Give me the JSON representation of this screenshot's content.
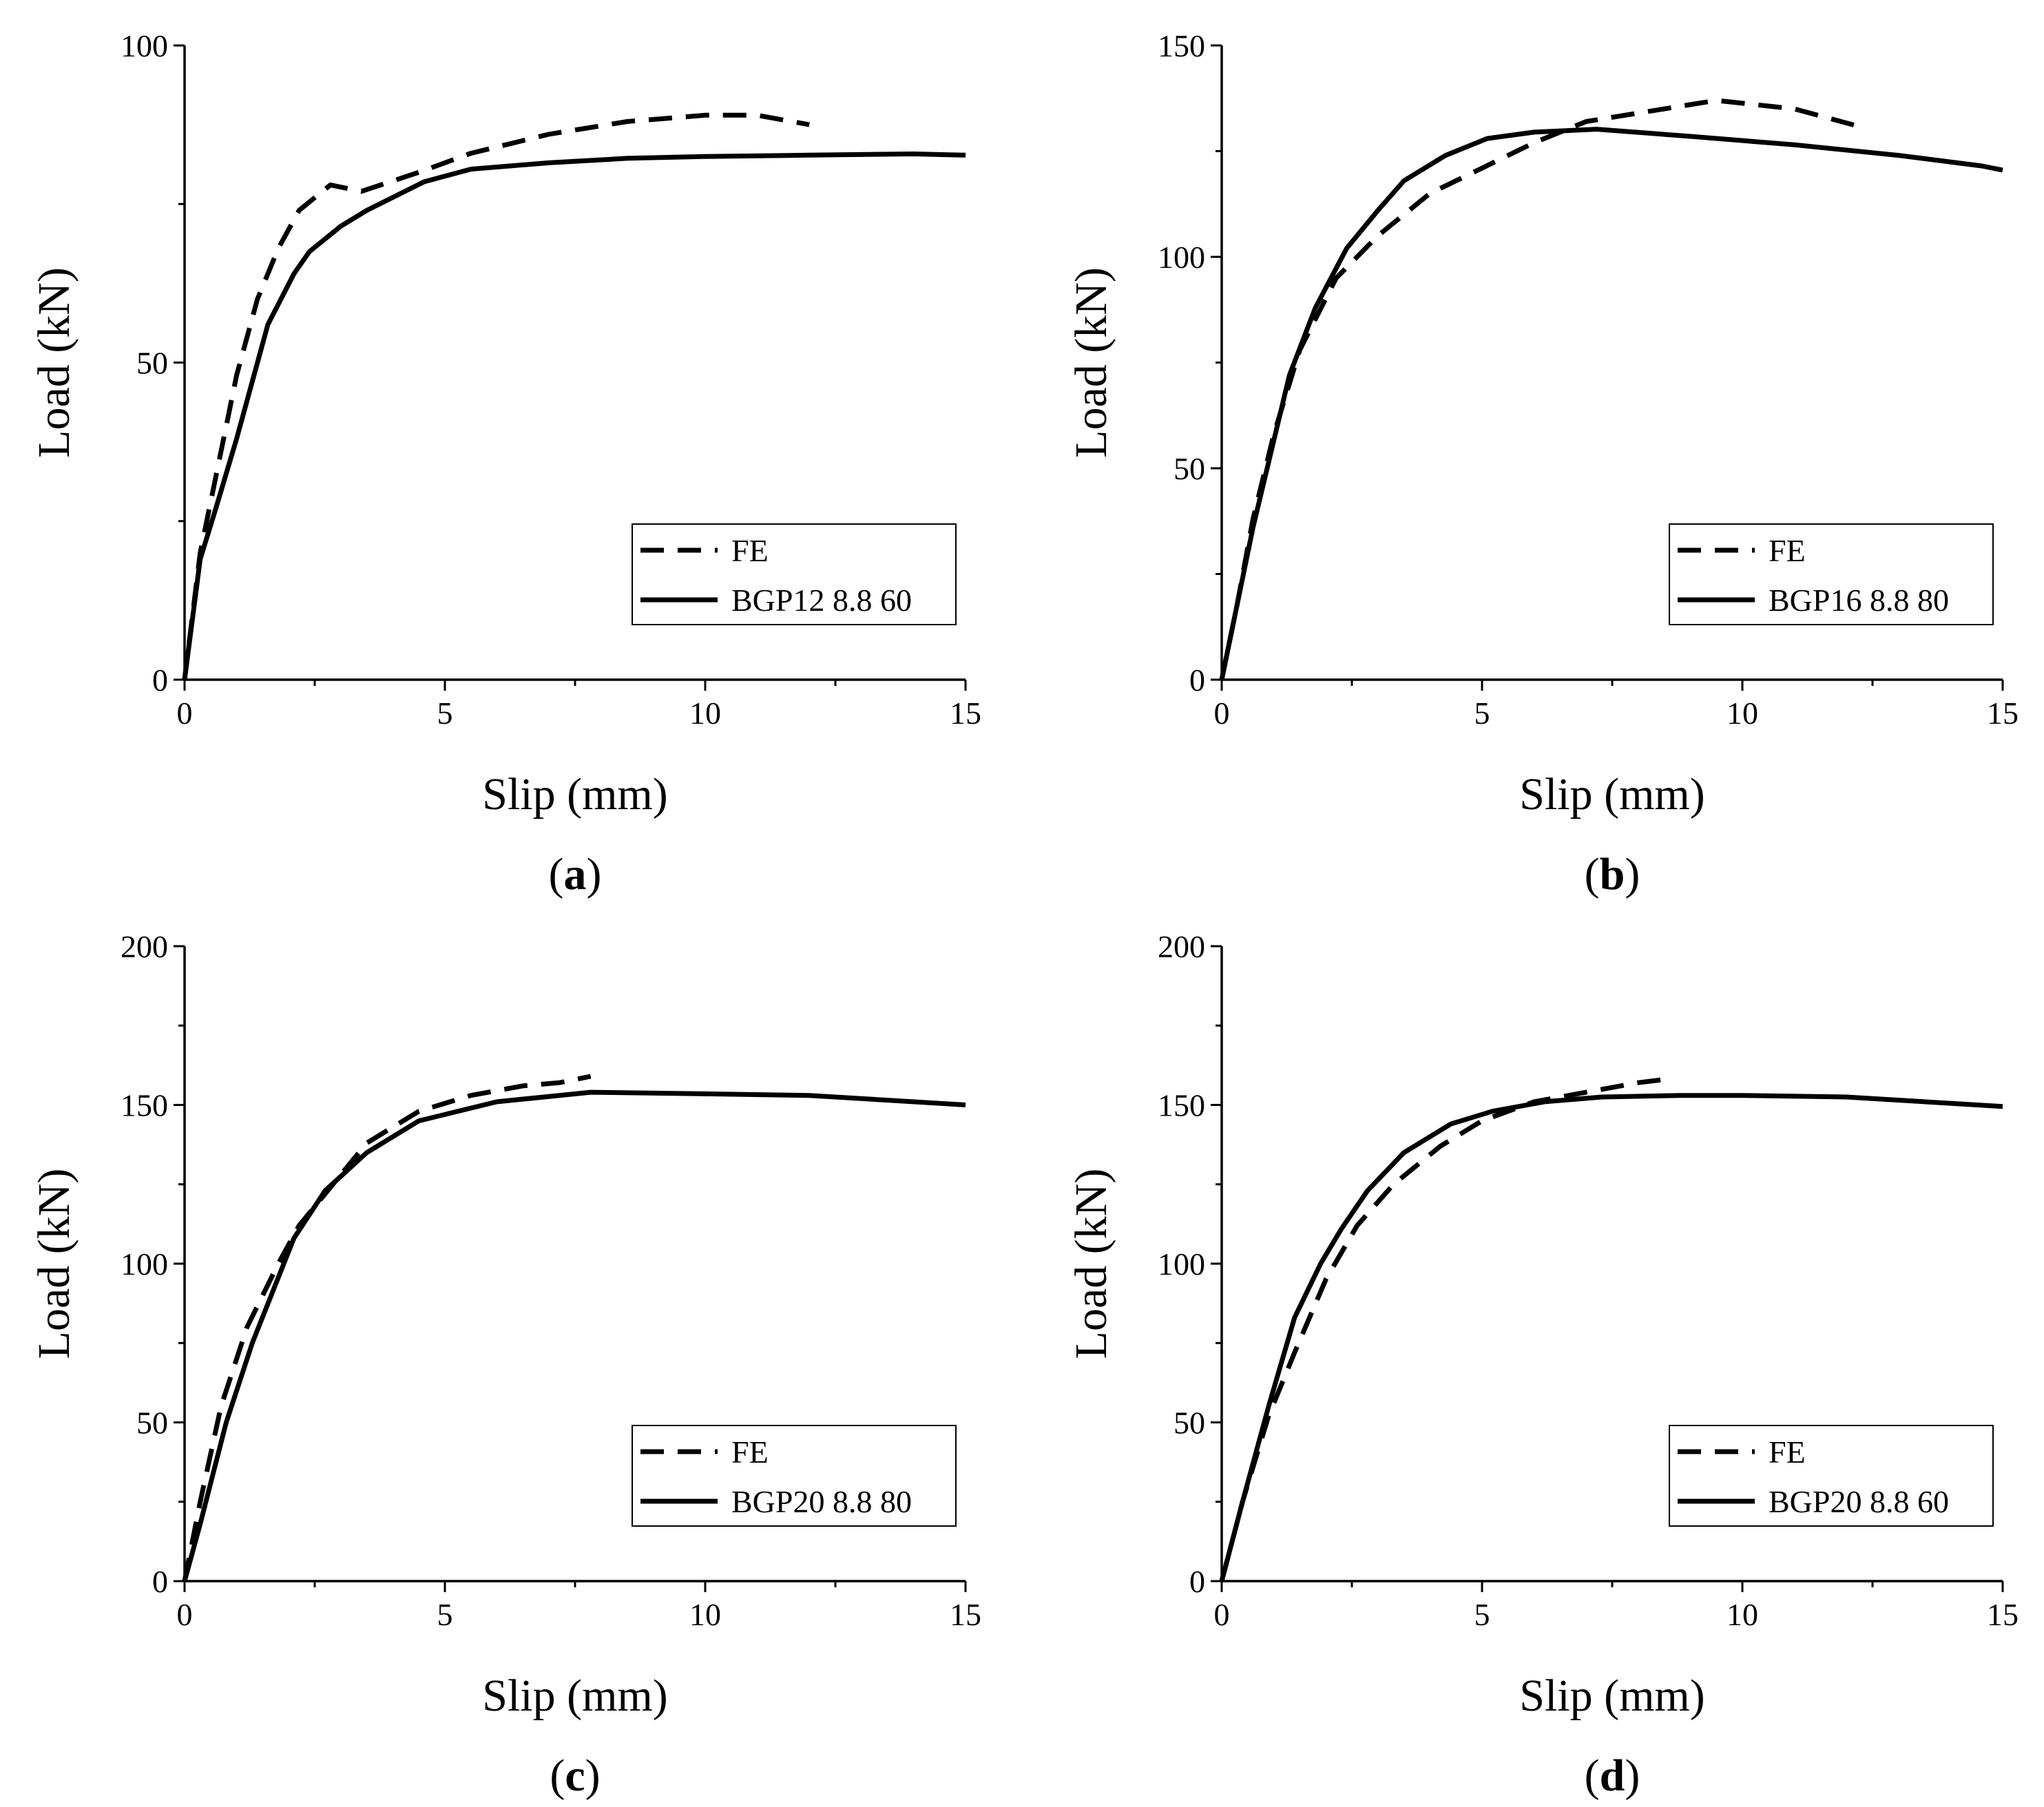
{
  "chart_data": [
    {
      "type": "line",
      "panel_label": "a",
      "xlabel": "Slip (mm)",
      "ylabel": "Load (kN)",
      "xlim": [
        0,
        15
      ],
      "ylim": [
        0,
        100
      ],
      "xticks": [
        0,
        5,
        10,
        15
      ],
      "yticks": [
        0,
        50,
        100
      ],
      "legend_position": "bottom-right",
      "series": [
        {
          "name": "FE",
          "style": "dashed",
          "x": [
            0,
            0.3,
            0.6,
            1.0,
            1.4,
            1.8,
            2.2,
            2.8,
            3.4,
            4.5,
            5.5,
            7,
            8.5,
            10,
            11,
            12
          ],
          "y": [
            0,
            20,
            32,
            48,
            60,
            68,
            74,
            78,
            77,
            80,
            83,
            86,
            88,
            89,
            89,
            87.5
          ]
        },
        {
          "name": "BGP12 8.8 60",
          "style": "solid",
          "x": [
            0,
            0.3,
            0.6,
            1.0,
            1.6,
            2.1,
            2.4,
            3.0,
            3.5,
            4.6,
            5.5,
            7,
            8.5,
            10,
            12,
            14,
            15
          ],
          "y": [
            0,
            19,
            27,
            38,
            56,
            64,
            67.5,
            71.5,
            74,
            78.5,
            80.5,
            81.5,
            82.2,
            82.5,
            82.7,
            82.9,
            82.7
          ]
        }
      ]
    },
    {
      "type": "line",
      "panel_label": "b",
      "xlabel": "Slip (mm)",
      "ylabel": "Load (kN)",
      "xlim": [
        0,
        15
      ],
      "ylim": [
        0,
        150
      ],
      "xticks": [
        0,
        5,
        10,
        15
      ],
      "yticks": [
        0,
        50,
        100,
        150
      ],
      "legend_position": "bottom-right",
      "series": [
        {
          "name": "FE",
          "style": "dashed",
          "x": [
            0,
            0.3,
            0.6,
            1.0,
            1.5,
            2.2,
            3.0,
            4.0,
            5.0,
            6.0,
            7.0,
            8.0,
            9.5,
            11,
            12.2
          ],
          "y": [
            0,
            18,
            38,
            58,
            78,
            95,
            105,
            115,
            121,
            127,
            132,
            134,
            137,
            135,
            131
          ]
        },
        {
          "name": "BGP16 8.8 80",
          "style": "solid",
          "x": [
            0,
            0.6,
            1.3,
            1.8,
            2.4,
            3.0,
            3.5,
            4.3,
            5.1,
            6.0,
            7.2,
            9,
            11,
            13,
            14.6,
            15
          ],
          "y": [
            0,
            36,
            72,
            88,
            102,
            111,
            118,
            124,
            128,
            129.5,
            130.2,
            128.5,
            126.5,
            124,
            121.5,
            120.5
          ]
        }
      ]
    },
    {
      "type": "line",
      "panel_label": "c",
      "xlabel": "Slip (mm)",
      "ylabel": "Load (kN)",
      "xlim": [
        0,
        15
      ],
      "ylim": [
        0,
        200
      ],
      "xticks": [
        0,
        5,
        10,
        15
      ],
      "yticks": [
        0,
        50,
        100,
        150,
        200
      ],
      "legend_position": "bottom-right",
      "series": [
        {
          "name": "FE",
          "style": "dashed",
          "x": [
            0,
            0.3,
            0.7,
            1.2,
            1.8,
            2.2,
            2.7,
            3.5,
            4.5,
            5.5,
            6.5,
            7.2,
            7.8
          ],
          "y": [
            0,
            25,
            55,
            80,
            100,
            112,
            122,
            138,
            148,
            153,
            156,
            157,
            159
          ]
        },
        {
          "name": "BGP20 8.8 80",
          "style": "solid",
          "x": [
            0,
            0.3,
            0.8,
            1.3,
            2.1,
            2.7,
            3.5,
            4.5,
            6.0,
            7.8,
            10,
            12,
            15
          ],
          "y": [
            0,
            18,
            50,
            75,
            108,
            123,
            135,
            145,
            151,
            154,
            153.5,
            153,
            150
          ]
        }
      ]
    },
    {
      "type": "line",
      "panel_label": "d",
      "xlabel": "Slip (mm)",
      "ylabel": "Load (kN)",
      "xlim": [
        0,
        15
      ],
      "ylim": [
        0,
        200
      ],
      "xticks": [
        0,
        5,
        10,
        15
      ],
      "yticks": [
        0,
        50,
        100,
        150,
        200
      ],
      "legend_position": "bottom-right",
      "series": [
        {
          "name": "FE",
          "style": "dashed",
          "x": [
            0,
            0.4,
            0.9,
            1.4,
            2.0,
            2.6,
            3.3,
            4.2,
            5.0,
            6.0,
            7.0,
            8.0,
            8.5
          ],
          "y": [
            0,
            25,
            52,
            72,
            95,
            112,
            125,
            137,
            145,
            151,
            154,
            157,
            158
          ]
        },
        {
          "name": "BGP20 8.8 60",
          "style": "solid",
          "x": [
            0,
            0.4,
            0.9,
            1.4,
            1.9,
            2.3,
            2.8,
            3.5,
            4.4,
            5.2,
            6.2,
            7.3,
            8.8,
            10,
            12,
            15
          ],
          "y": [
            0,
            25,
            55,
            83,
            100,
            111,
            123,
            135,
            144,
            148,
            151,
            152.5,
            153,
            153,
            152.5,
            149.5
          ]
        }
      ]
    }
  ]
}
